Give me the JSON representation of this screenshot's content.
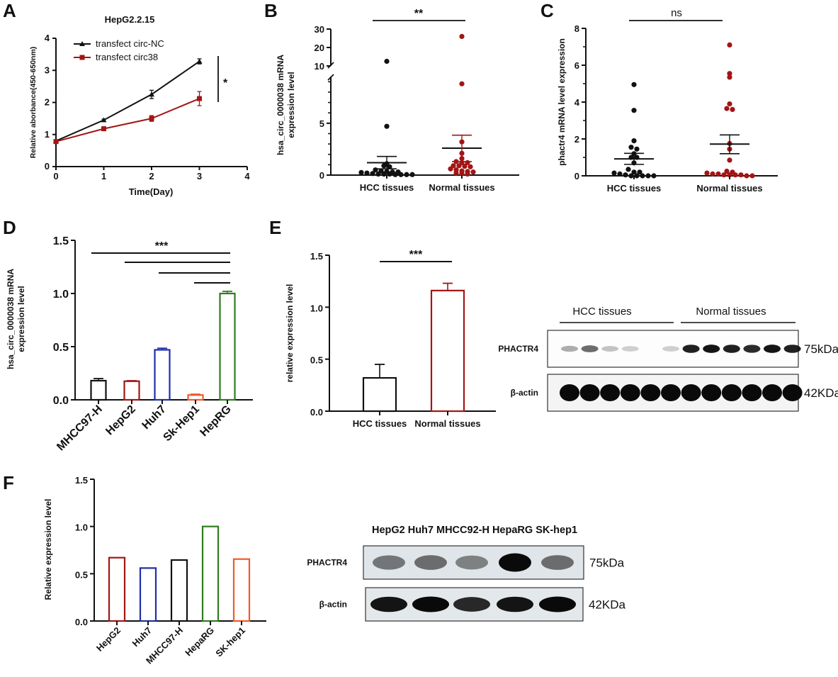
{
  "figure": {
    "panel_labels": [
      "A",
      "B",
      "C",
      "D",
      "E",
      "F"
    ]
  },
  "chart_data": [
    {
      "id": "A",
      "type": "line",
      "title": "HepG2.2.15",
      "xlabel": "Time(Day)",
      "ylabel": "Relative aborbance(450-650nm)",
      "xlim": [
        0,
        4
      ],
      "ylim": [
        0,
        4
      ],
      "xticks": [
        "0",
        "1",
        "2",
        "3",
        "4"
      ],
      "yticks": [
        "0",
        "1",
        "2",
        "3",
        "4"
      ],
      "x": [
        0,
        1,
        2,
        3
      ],
      "series": [
        {
          "name": "transfect circ-NC",
          "color": "#111111",
          "marker": "triangle",
          "values": [
            0.8,
            1.45,
            2.25,
            3.28
          ],
          "errors": [
            0.03,
            0.03,
            0.13,
            0.08
          ]
        },
        {
          "name": "transfect circ38",
          "color": "#a31515",
          "marker": "square",
          "values": [
            0.78,
            1.18,
            1.5,
            2.12
          ],
          "errors": [
            0.03,
            0.03,
            0.09,
            0.22
          ]
        }
      ],
      "legend": "top-left",
      "annotation": "*"
    },
    {
      "id": "B",
      "type": "scatter",
      "ylabel_lines": [
        "hsa_circ_0000038 mRNA",
        "expression level"
      ],
      "categories": [
        "HCC tissues",
        "Normal tissues"
      ],
      "yticks_lower": [
        "0",
        "5"
      ],
      "yticks_upper": [
        "10",
        "20",
        "30"
      ],
      "ylim_lower": [
        0,
        9.5
      ],
      "ylim_upper": [
        9.5,
        30
      ],
      "axis_break": true,
      "series": [
        {
          "name": "HCC tissues",
          "color": "#111111",
          "values": [
            12.5,
            4.7,
            1.1,
            0.9,
            0.8,
            0.5,
            0.4,
            0.35,
            0.3,
            0.3,
            0.25,
            0.2,
            0.15,
            0.1,
            0.1,
            0.1,
            0.05,
            0.05,
            0.05,
            0.05
          ],
          "mean": 1.2,
          "sem_upper": 1.8,
          "sem_lower": 0.6
        },
        {
          "name": "Normal tissues",
          "color": "#a31515",
          "values": [
            26,
            8.8,
            3.2,
            2.1,
            1.6,
            1.3,
            1.2,
            1.2,
            0.9,
            0.9,
            0.85,
            0.8,
            0.6,
            0.5,
            0.4,
            0.35,
            0.3,
            0.2,
            0.15,
            0.1
          ],
          "mean": 2.6,
          "sem_upper": 3.85,
          "sem_lower": 1.3
        }
      ],
      "annotation": "**"
    },
    {
      "id": "C",
      "type": "scatter",
      "ylabel": "phactr4 mRNA level expression",
      "categories": [
        "HCC tissues",
        "Normal tissues"
      ],
      "ylim": [
        0,
        8
      ],
      "yticks": [
        "0",
        "2",
        "4",
        "6",
        "8"
      ],
      "series": [
        {
          "name": "HCC tissues",
          "color": "#111111",
          "values": [
            4.95,
            3.55,
            1.9,
            1.55,
            1.45,
            1.2,
            1.0,
            1.0,
            0.7,
            0.35,
            0.2,
            0.2,
            0.15,
            0.1,
            0.05,
            0.0,
            0.0,
            0.0,
            0.0,
            0.0
          ],
          "mean": 0.92,
          "sem_upper": 1.22,
          "sem_lower": 0.62
        },
        {
          "name": "Normal tissues",
          "color": "#a31515",
          "values": [
            7.1,
            5.55,
            5.35,
            3.9,
            3.65,
            3.6,
            1.75,
            1.45,
            0.85,
            0.25,
            0.2,
            0.15,
            0.1,
            0.1,
            0.05,
            0.05,
            0.05,
            0.05,
            0.0,
            0.0
          ],
          "mean": 1.72,
          "sem_upper": 2.22,
          "sem_lower": 1.2
        }
      ],
      "annotation": "ns"
    },
    {
      "id": "D",
      "type": "bar",
      "ylabel_lines": [
        "hsa_circ_0000038 mRNA",
        "expression level"
      ],
      "categories": [
        "MHCC97-H",
        "HepG2",
        "Huh7",
        "Sk-Hep1",
        "HepRG"
      ],
      "values": [
        0.18,
        0.175,
        0.47,
        0.045,
        1.0
      ],
      "errors": [
        0.02,
        0.005,
        0.015,
        0.008,
        0.02
      ],
      "colors": [
        "#111111",
        "#a31515",
        "#1f2fa8",
        "#f05a28",
        "#2e7d1f"
      ],
      "ylim": [
        0,
        1.5
      ],
      "yticks": [
        "0.0",
        "0.5",
        "1.0",
        "1.5"
      ],
      "annotation": "***"
    },
    {
      "id": "E",
      "type": "bar",
      "ylabel": "relative expression level",
      "categories": [
        "HCC tissues",
        "Normal tissues"
      ],
      "values": [
        0.32,
        1.16
      ],
      "errors": [
        0.13,
        0.07
      ],
      "colors": [
        "#111111",
        "#a31515"
      ],
      "ylim": [
        0,
        1.5
      ],
      "yticks": [
        "0.0",
        "0.5",
        "1.0",
        "1.5"
      ],
      "annotation": "***"
    },
    {
      "id": "F",
      "type": "bar",
      "ylabel": "Relative expression level",
      "categories": [
        "HepG2",
        "Huh7",
        "MHCC97-H",
        "HepaRG",
        "SK-hep1"
      ],
      "values": [
        0.67,
        0.56,
        0.645,
        1.0,
        0.655
      ],
      "colors": [
        "#a31515",
        "#1f2fa8",
        "#111111",
        "#2e7d1f",
        "#f05a28"
      ],
      "ylim": [
        0,
        1.5
      ],
      "yticks": [
        "0.0",
        "0.5",
        "1.0",
        "1.5"
      ]
    }
  ],
  "blots": {
    "E": {
      "groups": [
        "HCC tissues",
        "Normal   tissues"
      ],
      "rows": [
        {
          "label": "PHACTR4",
          "kda": "75kDa",
          "intensities": [
            0.25,
            0.55,
            0.15,
            0.1,
            0.0,
            0.1,
            0.9,
            0.95,
            0.9,
            0.85,
            0.95,
            0.9
          ]
        },
        {
          "label": "β-actin",
          "kda": "42KDa",
          "intensities": [
            1,
            1,
            1,
            1,
            1,
            1,
            1,
            1,
            1,
            1,
            1,
            1
          ]
        }
      ]
    },
    "F": {
      "lanes_header": "HepG2 Huh7 MHCC92-H HepaRG SK-hep1",
      "rows": [
        {
          "label": "PHACTR4",
          "kda": "75kDa",
          "intensities": [
            0.45,
            0.5,
            0.4,
            1.0,
            0.5
          ]
        },
        {
          "label": "β-actin",
          "kda": "42KDa",
          "intensities": [
            0.95,
            1.0,
            0.85,
            0.95,
            1.0
          ]
        }
      ]
    }
  }
}
